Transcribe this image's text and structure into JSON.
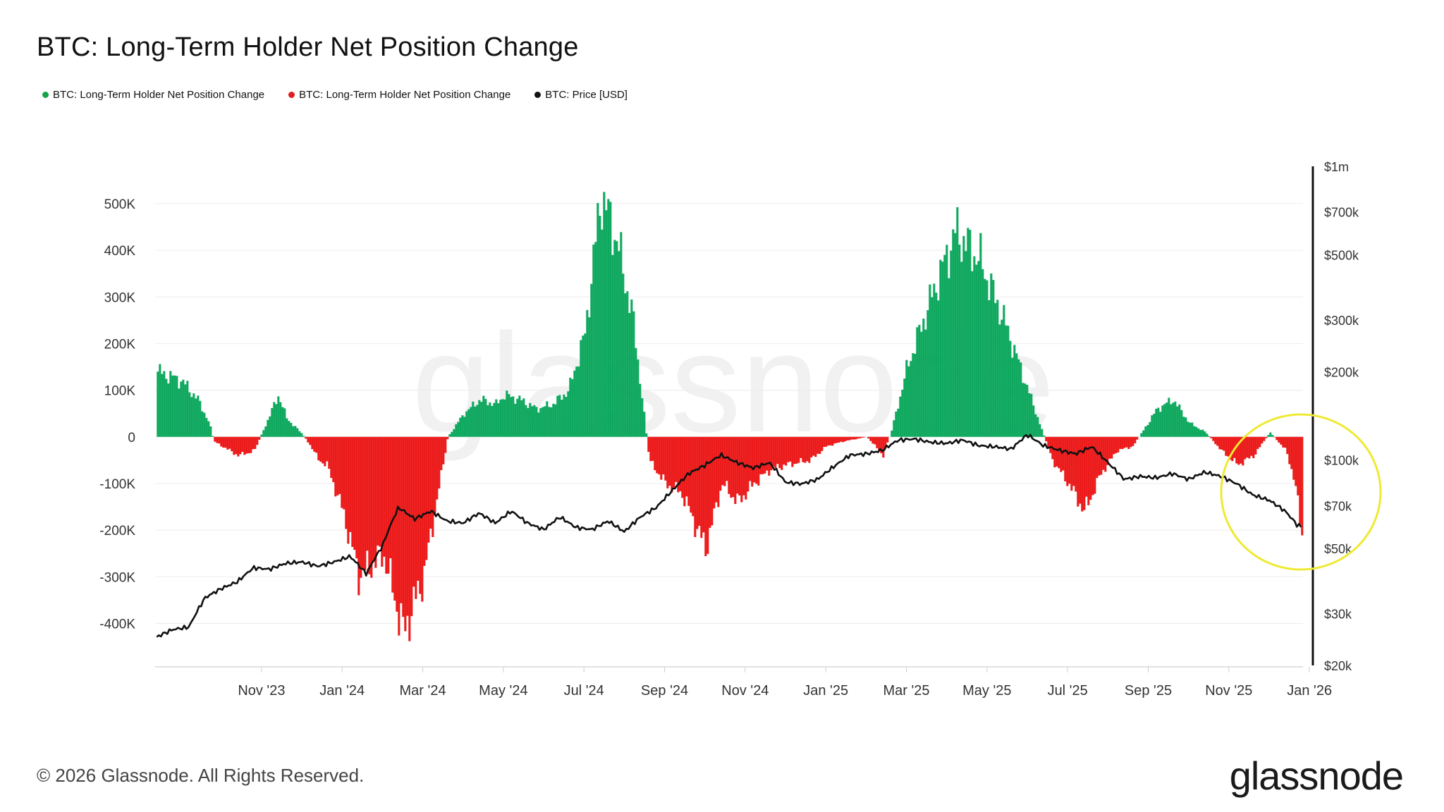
{
  "title": "BTC: Long-Term Holder Net Position Change",
  "legend": [
    {
      "label": "BTC: Long-Term Holder Net Position Change",
      "color": "#16a34a"
    },
    {
      "label": "BTC: Long-Term Holder Net Position Change",
      "color": "#e11d1d"
    },
    {
      "label": "BTC: Price [USD]",
      "color": "#111111"
    }
  ],
  "footer": "© 2026 Glassnode. All Rights Reserved.",
  "brand": "glassnode",
  "watermark": "glassnode",
  "colors": {
    "positive": "#0fa85f",
    "negative": "#ec1a1a",
    "price": "#111111",
    "highlight": "#eeea33",
    "grid": "#ececec"
  },
  "chart_data": {
    "type": "area",
    "title": "BTC: Long-Term Holder Net Position Change",
    "x_tick_labels": [
      "Nov '23",
      "Jan '24",
      "Mar '24",
      "May '24",
      "Jul '24",
      "Sep '24",
      "Nov '24",
      "Jan '25",
      "Mar '25",
      "May '25",
      "Jul '25",
      "Sep '25",
      "Nov '25",
      "Jan '26"
    ],
    "x_range": [
      -1.32,
      12.92
    ],
    "y_left": {
      "label": "",
      "ticks": [
        500000,
        400000,
        300000,
        200000,
        100000,
        0,
        -100000,
        -200000,
        -300000,
        -400000
      ],
      "tick_labels": [
        "500K",
        "400K",
        "300K",
        "200K",
        "100K",
        "0",
        "-100K",
        "-200K",
        "-300K",
        "-400K"
      ],
      "range": [
        -490000,
        580000
      ]
    },
    "y_right": {
      "label": "",
      "scale": "log",
      "ticks": [
        1000000,
        700000,
        500000,
        300000,
        200000,
        100000,
        70000,
        50000,
        30000,
        20000
      ],
      "tick_labels": [
        "$1m",
        "$700k",
        "$500k",
        "$300k",
        "$200k",
        "$100k",
        "$70k",
        "$50k",
        "$30k",
        "$20k"
      ],
      "range": [
        20000,
        1000000
      ]
    },
    "series": [
      {
        "name": "BTC: Long-Term Holder Net Position Change",
        "axis": "left",
        "x": [
          -1.3,
          -1.0,
          -0.8,
          -0.66,
          -0.6,
          -0.3,
          -0.1,
          0.0,
          0.2,
          0.3,
          0.5,
          0.6,
          0.7,
          0.8,
          1.0,
          1.2,
          1.5,
          1.75,
          2.0,
          2.15,
          2.3,
          2.5,
          2.7,
          2.9,
          3.0,
          3.2,
          3.4,
          3.6,
          3.8,
          4.0,
          4.2,
          4.4,
          4.6,
          4.8,
          5.0,
          5.2,
          5.5,
          5.7,
          5.9,
          6.1,
          6.3,
          6.5,
          6.8,
          7.0,
          7.2,
          7.5,
          7.7,
          7.8,
          8.0,
          8.3,
          8.6,
          8.9,
          9.2,
          9.4,
          9.6,
          9.8,
          10.0,
          10.2,
          10.4,
          10.6,
          10.8,
          11.1,
          11.3,
          11.5,
          11.7,
          11.9,
          12.1,
          12.3,
          12.5,
          12.7,
          12.8,
          12.92
        ],
        "values": [
          140000,
          120000,
          80000,
          30000,
          -10000,
          -40000,
          -30000,
          10000,
          90000,
          40000,
          5000,
          -20000,
          -50000,
          -60000,
          -160000,
          -300000,
          -250000,
          -420000,
          -300000,
          -150000,
          0,
          50000,
          80000,
          70000,
          90000,
          80000,
          60000,
          70000,
          100000,
          220000,
          520000,
          420000,
          250000,
          -50000,
          -100000,
          -120000,
          -240000,
          -100000,
          -140000,
          -100000,
          -70000,
          -60000,
          -50000,
          -20000,
          -10000,
          0,
          -40000,
          10000,
          150000,
          300000,
          440000,
          380000,
          250000,
          150000,
          50000,
          -50000,
          -100000,
          -160000,
          -80000,
          -30000,
          -20000,
          60000,
          80000,
          30000,
          10000,
          -30000,
          -60000,
          -40000,
          10000,
          -30000,
          -90000,
          -240000
        ]
      },
      {
        "name": "BTC: Price [USD]",
        "axis": "right",
        "x": [
          -1.3,
          -1.1,
          -0.9,
          -0.7,
          -0.5,
          -0.3,
          -0.1,
          0.1,
          0.3,
          0.5,
          0.7,
          0.9,
          1.1,
          1.3,
          1.5,
          1.7,
          1.9,
          2.1,
          2.3,
          2.5,
          2.7,
          2.9,
          3.1,
          3.3,
          3.5,
          3.7,
          3.9,
          4.1,
          4.3,
          4.5,
          4.7,
          4.9,
          5.1,
          5.3,
          5.5,
          5.7,
          5.9,
          6.1,
          6.3,
          6.5,
          6.7,
          6.9,
          7.1,
          7.3,
          7.5,
          7.7,
          7.9,
          8.1,
          8.3,
          8.5,
          8.7,
          8.9,
          9.1,
          9.3,
          9.5,
          9.7,
          9.9,
          10.1,
          10.3,
          10.5,
          10.7,
          10.9,
          11.1,
          11.3,
          11.5,
          11.7,
          11.9,
          12.1,
          12.3,
          12.5,
          12.7,
          12.85,
          12.92
        ],
        "values": [
          25000,
          26500,
          27000,
          34000,
          36500,
          38500,
          43000,
          42500,
          44500,
          45000,
          43500,
          45000,
          47000,
          41000,
          51000,
          69000,
          63000,
          67000,
          62000,
          61000,
          66000,
          61000,
          67000,
          61000,
          58000,
          64000,
          59000,
          58000,
          62000,
          57000,
          64000,
          69000,
          79000,
          90000,
          96000,
          104000,
          98000,
          94000,
          98000,
          84000,
          83000,
          86000,
          95000,
          104000,
          105000,
          108000,
          117000,
          118000,
          115000,
          114000,
          117000,
          112000,
          111000,
          109000,
          122000,
          112000,
          108000,
          105000,
          111000,
          98000,
          86000,
          88000,
          87000,
          90000,
          86000,
          91000,
          88000,
          83000,
          76000,
          73000,
          67000,
          60000,
          59000
        ]
      }
    ],
    "annotations": [
      {
        "type": "ellipse",
        "label": "",
        "x_center": 12.3,
        "y_center_left": -145000
      }
    ]
  }
}
